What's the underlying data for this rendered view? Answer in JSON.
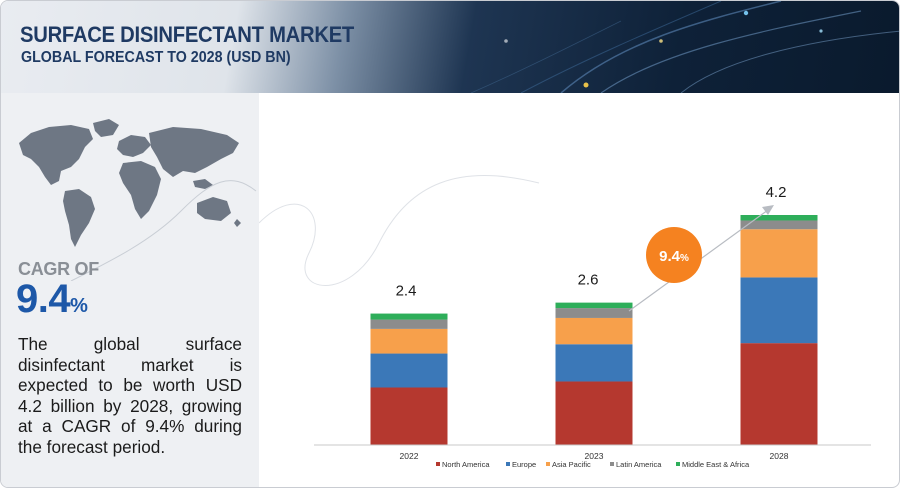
{
  "header": {
    "title": "SURFACE DISINFECTANT MARKET",
    "subtitle": "GLOBAL FORECAST TO 2028 (USD BN)"
  },
  "summary": {
    "cagr_label": "CAGR OF",
    "cagr_number": "9.4",
    "cagr_unit": "%",
    "description": "The global surface disinfectant market is expected to be worth USD 4.2 billion by 2028, growing at a CAGR of 9.4% during the forecast period."
  },
  "colors": {
    "north_america": "#b5382f",
    "europe": "#3b78b8",
    "asia_pacific": "#f7a04b",
    "latin_america": "#8c8c8c",
    "middle_east_africa": "#2eae5a",
    "badge": "#f58220",
    "cagr_text": "#1d58a8"
  },
  "chart_data": {
    "type": "bar",
    "stacked": true,
    "categories": [
      "2022",
      "2023",
      "2028"
    ],
    "totals_labels": [
      "2.4",
      "2.6",
      "4.2"
    ],
    "series": [
      {
        "name": "North America",
        "values": [
          1.05,
          1.16,
          1.86
        ]
      },
      {
        "name": "Europe",
        "values": [
          0.62,
          0.68,
          1.2
        ]
      },
      {
        "name": "Asia Pacific",
        "values": [
          0.45,
          0.48,
          0.88
        ]
      },
      {
        "name": "Latin America",
        "values": [
          0.17,
          0.18,
          0.16
        ]
      },
      {
        "name": "Middle East & Africa",
        "values": [
          0.11,
          0.1,
          0.1
        ]
      }
    ],
    "ylim": [
      0,
      4.2
    ],
    "annotation": {
      "number": "9.4",
      "unit": "%"
    },
    "legend_position": "bottom",
    "grid": false
  }
}
